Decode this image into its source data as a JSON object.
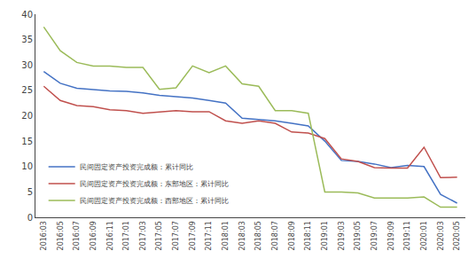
{
  "chart_data": {
    "type": "line",
    "categories": [
      "2016:03",
      "2016:05",
      "2016:07",
      "2016:09",
      "2016:11",
      "2017:01",
      "2017:03",
      "2017:05",
      "2017:07",
      "2017:09",
      "2017:11",
      "2018:01",
      "2018:03",
      "2018:05",
      "2018:07",
      "2018:09",
      "2018:11",
      "2019:01",
      "2019:03",
      "2019:05",
      "2019:07",
      "2019:09",
      "2019:11",
      "2020:01",
      "2020:03",
      "2020:05"
    ],
    "series": [
      {
        "name": "民间固定资产投资完成额：累计同比",
        "color": "#4472c4",
        "values": [
          28.7,
          26.4,
          25.4,
          25.1,
          24.9,
          24.8,
          24.5,
          24.0,
          23.8,
          23.5,
          23.0,
          22.5,
          19.5,
          19.2,
          19.0,
          18.5,
          18.0,
          15.0,
          11.2,
          11.0,
          10.5,
          9.8,
          10.2,
          10.0,
          4.5,
          2.8
        ]
      },
      {
        "name": "民间固定资产投资完成额：东部地区：累计同比",
        "color": "#c0504d",
        "values": [
          25.8,
          23.0,
          22.0,
          21.8,
          21.2,
          21.0,
          20.5,
          20.8,
          21.0,
          20.8,
          20.8,
          19.0,
          18.5,
          19.0,
          18.5,
          16.8,
          16.6,
          15.5,
          11.5,
          11.0,
          9.8,
          9.7,
          9.7,
          13.8,
          7.8,
          7.9
        ]
      },
      {
        "name": "民间固定资产投资完成额：西部地区：累计同比",
        "color": "#9bbb59",
        "values": [
          37.5,
          32.8,
          30.5,
          29.8,
          29.8,
          29.5,
          29.5,
          25.2,
          25.5,
          29.8,
          28.5,
          29.8,
          26.3,
          25.8,
          21.0,
          21.0,
          20.5,
          5.0,
          5.0,
          4.8,
          3.8,
          3.8,
          3.8,
          4.0,
          2.0,
          2.0
        ]
      }
    ],
    "ylim": [
      0,
      40
    ],
    "yticks": [
      0,
      5,
      10,
      15,
      20,
      25,
      30,
      35,
      40
    ],
    "grid": false,
    "legend": "lower left"
  }
}
